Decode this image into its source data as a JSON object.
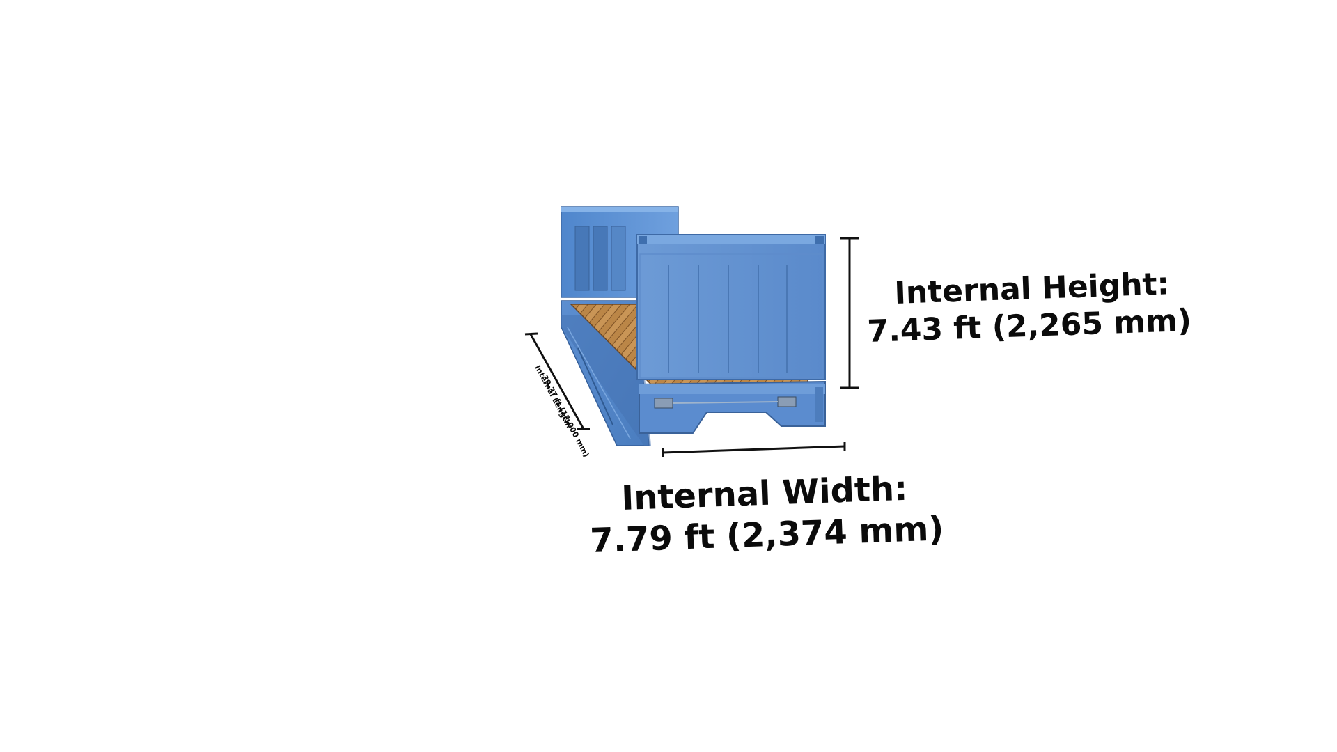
{
  "labels": {
    "height_title": "Internal Height:",
    "height_value": "7.43 ft  (2,265 mm)",
    "width_title": "Internal Width:",
    "width_value": "7.79 ft (2,374 mm)",
    "length_title": "Internal Length:",
    "length_value": "39.37 ft (12,000 mm)"
  },
  "colors": {
    "container_blue": "#5b8fd0",
    "container_blue_dark": "#3f6fae",
    "container_blue_light": "#7eaae0",
    "floor_wood": "#b9844a",
    "floor_wood_dark": "#8a5a2b",
    "dimension_line": "#111111"
  }
}
